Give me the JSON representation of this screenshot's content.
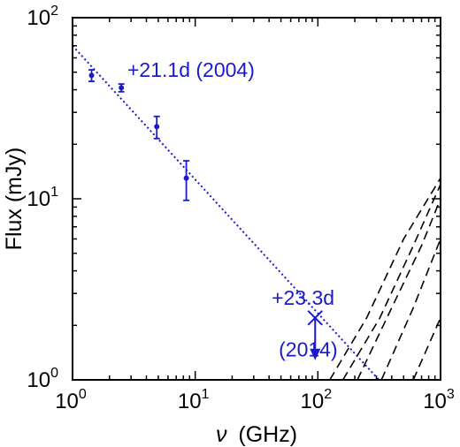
{
  "chart_data": {
    "type": "scatter",
    "title": "",
    "xlabel": {
      "symbol": "ν",
      "unit": "(GHz)"
    },
    "ylabel": "Flux (mJy)",
    "xscale": "log",
    "yscale": "log",
    "xlim": [
      1,
      1000
    ],
    "ylim": [
      1,
      100
    ],
    "xticks": [
      {
        "base": "10",
        "exp": "0",
        "value": 1
      },
      {
        "base": "10",
        "exp": "1",
        "value": 10
      },
      {
        "base": "10",
        "exp": "2",
        "value": 100
      },
      {
        "base": "10",
        "exp": "3",
        "value": 1000
      }
    ],
    "yticks": [
      {
        "base": "10",
        "exp": "0",
        "value": 1
      },
      {
        "base": "10",
        "exp": "1",
        "value": 10
      },
      {
        "base": "10",
        "exp": "2",
        "value": 100
      }
    ],
    "grid": false,
    "colors": {
      "data": "#1a1acc",
      "models": "#000000"
    },
    "series": [
      {
        "kind": "points",
        "color": "#1a1acc",
        "points": [
          {
            "x": 1.43,
            "y": 48,
            "yerr_low": 44.5,
            "yerr_high": 51.5
          },
          {
            "x": 2.5,
            "y": 41,
            "yerr_low": 39,
            "yerr_high": 43
          },
          {
            "x": 4.86,
            "y": 25,
            "yerr_low": 21.5,
            "yerr_high": 28.5
          },
          {
            "x": 8.46,
            "y": 13,
            "yerr_low": 9.8,
            "yerr_high": 16.2
          }
        ]
      },
      {
        "kind": "fit",
        "style": "dotted",
        "color": "#1a1acc",
        "points": [
          {
            "x": 1,
            "y": 70
          },
          {
            "x": 315,
            "y": 1
          }
        ]
      },
      {
        "kind": "upper_limit",
        "color": "#1a1acc",
        "points": [
          {
            "x": 95,
            "y": 2.2
          }
        ]
      },
      {
        "kind": "model",
        "style": "dashed",
        "color": "#000000",
        "curves": [
          [
            {
              "x": 125,
              "y": 1
            },
            {
              "x": 250,
              "y": 2.2
            },
            {
              "x": 500,
              "y": 6
            },
            {
              "x": 1000,
              "y": 13
            }
          ],
          [
            {
              "x": 160,
              "y": 1
            },
            {
              "x": 320,
              "y": 2.2
            },
            {
              "x": 600,
              "y": 5.5
            },
            {
              "x": 1000,
              "y": 12
            }
          ],
          [
            {
              "x": 210,
              "y": 1
            },
            {
              "x": 400,
              "y": 2.5
            },
            {
              "x": 700,
              "y": 5.5
            },
            {
              "x": 1000,
              "y": 10
            }
          ],
          [
            {
              "x": 330,
              "y": 1
            },
            {
              "x": 600,
              "y": 2.5
            },
            {
              "x": 1000,
              "y": 6
            }
          ],
          [
            {
              "x": 600,
              "y": 1
            },
            {
              "x": 1000,
              "y": 2.2
            }
          ]
        ]
      }
    ],
    "annotations": [
      {
        "text": "+21.1d (2004)",
        "x": 2.8,
        "y": 47
      },
      {
        "text": "+23.3d",
        "x": 42,
        "y": 2.6
      },
      {
        "text": "(2014)",
        "x": 48,
        "y": 1.35
      }
    ]
  }
}
